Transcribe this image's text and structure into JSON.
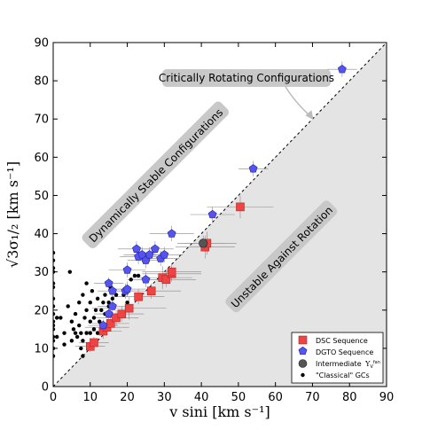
{
  "chart_data": {
    "type": "scatter",
    "xlabel": "v sini [km s⁻¹]",
    "ylabel": "√3σ₁/₂ [km s⁻¹]",
    "xlim": [
      0,
      90
    ],
    "ylim": [
      0,
      90
    ],
    "x_ticks": [
      "0",
      "10",
      "20",
      "30",
      "40",
      "50",
      "60",
      "70",
      "80",
      "90"
    ],
    "y_ticks": [
      "0",
      "10",
      "20",
      "30",
      "40",
      "50",
      "60",
      "70",
      "80",
      "90"
    ],
    "annotations": [
      {
        "text": "Critically Rotating Configurations",
        "position": "upper-right",
        "arrow_to": [
          70,
          70
        ]
      },
      {
        "text": "Dynamically Stable Configurations",
        "position": "upper-left",
        "rotation": -45
      },
      {
        "text": "Unstable Against Rotation",
        "position": "lower-right",
        "rotation": -45
      }
    ],
    "reference_line": {
      "name": "critical rotation",
      "x": [
        0,
        90
      ],
      "y": [
        0,
        90
      ]
    },
    "legend_position": "bottom-right",
    "series": [
      {
        "name": "DSC Sequence",
        "marker": "square",
        "color": "#ee4444",
        "points": [
          {
            "x": 10,
            "y": 10.5,
            "xerr": 4,
            "yerr": 1.5
          },
          {
            "x": 11,
            "y": 11.5,
            "xerr": 4,
            "yerr": 1.5
          },
          {
            "x": 13.5,
            "y": 14.5,
            "xerr": 5,
            "yerr": 2
          },
          {
            "x": 14.5,
            "y": 15.5,
            "xerr": 6,
            "yerr": 2
          },
          {
            "x": 15.5,
            "y": 16.5,
            "xerr": 5,
            "yerr": 2
          },
          {
            "x": 17,
            "y": 18,
            "xerr": 6,
            "yerr": 2
          },
          {
            "x": 18.5,
            "y": 19,
            "xerr": 6,
            "yerr": 2
          },
          {
            "x": 20.5,
            "y": 20.5,
            "xerr": 10,
            "yerr": 3
          },
          {
            "x": 23,
            "y": 23.5,
            "xerr": 7,
            "yerr": 2
          },
          {
            "x": 26.5,
            "y": 25,
            "xerr": 8,
            "yerr": 2
          },
          {
            "x": 29.5,
            "y": 28.5,
            "xerr": 8,
            "yerr": 3
          },
          {
            "x": 30.5,
            "y": 28,
            "xerr": 8,
            "yerr": 2
          },
          {
            "x": 32,
            "y": 29.5,
            "xerr": 8,
            "yerr": 2
          },
          {
            "x": 32,
            "y": 30,
            "xerr": 8,
            "yerr": 2
          },
          {
            "x": 41,
            "y": 36.5,
            "xerr": 8,
            "yerr": 3
          },
          {
            "x": 41.5,
            "y": 37.5,
            "xerr": 8,
            "yerr": 3
          },
          {
            "x": 50.5,
            "y": 47,
            "xerr": 9,
            "yerr": 3
          }
        ]
      },
      {
        "name": "DGTO Sequence",
        "marker": "pentagon",
        "color": "#5555ee",
        "points": [
          {
            "x": 13.5,
            "y": 16,
            "xerr": 4,
            "yerr": 1.5
          },
          {
            "x": 15,
            "y": 19,
            "xerr": 4,
            "yerr": 1.5
          },
          {
            "x": 16,
            "y": 21,
            "xerr": 4,
            "yerr": 1.5
          },
          {
            "x": 16,
            "y": 25,
            "xerr": 4,
            "yerr": 1.5
          },
          {
            "x": 15,
            "y": 27,
            "xerr": 4,
            "yerr": 1.5
          },
          {
            "x": 19.5,
            "y": 25,
            "xerr": 5,
            "yerr": 2
          },
          {
            "x": 20,
            "y": 25.5,
            "xerr": 5,
            "yerr": 2
          },
          {
            "x": 20,
            "y": 30.5,
            "xerr": 5,
            "yerr": 2
          },
          {
            "x": 23,
            "y": 34,
            "xerr": 5,
            "yerr": 2
          },
          {
            "x": 24,
            "y": 34.5,
            "xerr": 5,
            "yerr": 2
          },
          {
            "x": 25,
            "y": 33,
            "xerr": 5,
            "yerr": 2
          },
          {
            "x": 26,
            "y": 34.5,
            "xerr": 5,
            "yerr": 2
          },
          {
            "x": 25,
            "y": 28,
            "xerr": 5,
            "yerr": 2
          },
          {
            "x": 22.5,
            "y": 36,
            "xerr": 5,
            "yerr": 2
          },
          {
            "x": 27.5,
            "y": 36,
            "xerr": 5,
            "yerr": 2
          },
          {
            "x": 29,
            "y": 33.5,
            "xerr": 5,
            "yerr": 2
          },
          {
            "x": 30,
            "y": 34.5,
            "xerr": 5,
            "yerr": 2
          },
          {
            "x": 32,
            "y": 40,
            "xerr": 6,
            "yerr": 2
          },
          {
            "x": 43,
            "y": 45,
            "xerr": 6,
            "yerr": 2
          },
          {
            "x": 54,
            "y": 57,
            "xerr": 4,
            "yerr": 2
          },
          {
            "x": 78,
            "y": 83,
            "xerr": 4,
            "yerr": 2
          }
        ]
      },
      {
        "name": "Intermediate",
        "marker": "circle",
        "color": "#555555",
        "points": [
          {
            "x": 40.5,
            "y": 37.5,
            "xerr": 6,
            "yerr": 2
          }
        ]
      },
      {
        "name": "\"Classical\" GCs",
        "marker": "dot",
        "color": "#000000",
        "points": [
          {
            "x": 0,
            "y": 8
          },
          {
            "x": 0,
            "y": 10
          },
          {
            "x": 0,
            "y": 12
          },
          {
            "x": 0,
            "y": 13
          },
          {
            "x": 0,
            "y": 15
          },
          {
            "x": 0,
            "y": 16
          },
          {
            "x": 0,
            "y": 17
          },
          {
            "x": 0,
            "y": 19
          },
          {
            "x": 0,
            "y": 21
          },
          {
            "x": 0,
            "y": 23
          },
          {
            "x": 0,
            "y": 26
          },
          {
            "x": 0,
            "y": 27
          },
          {
            "x": 0,
            "y": 30
          },
          {
            "x": 0,
            "y": 31
          },
          {
            "x": 0,
            "y": 33
          },
          {
            "x": 0,
            "y": 35
          },
          {
            "x": 1,
            "y": 18
          },
          {
            "x": 1,
            "y": 13
          },
          {
            "x": 2,
            "y": 18
          },
          {
            "x": 3,
            "y": 11
          },
          {
            "x": 3,
            "y": 14
          },
          {
            "x": 4,
            "y": 21
          },
          {
            "x": 4.5,
            "y": 30
          },
          {
            "x": 5,
            "y": 12
          },
          {
            "x": 5,
            "y": 17
          },
          {
            "x": 5.5,
            "y": 15
          },
          {
            "x": 6,
            "y": 14
          },
          {
            "x": 6,
            "y": 19
          },
          {
            "x": 6.5,
            "y": 13
          },
          {
            "x": 7,
            "y": 16
          },
          {
            "x": 7,
            "y": 22
          },
          {
            "x": 7.5,
            "y": 10
          },
          {
            "x": 7.5,
            "y": 14
          },
          {
            "x": 8,
            "y": 12
          },
          {
            "x": 8,
            "y": 24
          },
          {
            "x": 8,
            "y": 8
          },
          {
            "x": 8.5,
            "y": 18
          },
          {
            "x": 9,
            "y": 14
          },
          {
            "x": 9,
            "y": 20
          },
          {
            "x": 9,
            "y": 27
          },
          {
            "x": 9.5,
            "y": 11
          },
          {
            "x": 10,
            "y": 17
          },
          {
            "x": 10,
            "y": 14
          },
          {
            "x": 10,
            "y": 22
          },
          {
            "x": 10.5,
            "y": 25
          },
          {
            "x": 11,
            "y": 12
          },
          {
            "x": 11,
            "y": 15
          },
          {
            "x": 11,
            "y": 18
          },
          {
            "x": 11.5,
            "y": 20
          },
          {
            "x": 12,
            "y": 14
          },
          {
            "x": 12,
            "y": 23
          },
          {
            "x": 12.5,
            "y": 17
          },
          {
            "x": 13,
            "y": 20
          },
          {
            "x": 13.5,
            "y": 22
          },
          {
            "x": 14,
            "y": 19
          },
          {
            "x": 14,
            "y": 24
          },
          {
            "x": 15,
            "y": 21
          },
          {
            "x": 15,
            "y": 22
          },
          {
            "x": 15.5,
            "y": 26
          },
          {
            "x": 16,
            "y": 23
          },
          {
            "x": 17,
            "y": 24
          },
          {
            "x": 19,
            "y": 24
          },
          {
            "x": 20,
            "y": 22
          },
          {
            "x": 22,
            "y": 29
          },
          {
            "x": 23,
            "y": 29
          },
          {
            "x": 21,
            "y": 28
          }
        ]
      }
    ]
  },
  "legend": {
    "items": [
      {
        "label": "DSC Sequence",
        "marker": "square",
        "color": "#ee4444"
      },
      {
        "label": "DGTO Sequence",
        "marker": "pentagon",
        "color": "#5555ee"
      },
      {
        "label": "Intermediate",
        "sub": "fan",
        "sup": "V",
        "marker": "circle",
        "color": "#555555"
      },
      {
        "label": "\"Classical\" GCs",
        "marker": "dot",
        "color": "#000000"
      }
    ]
  },
  "colors": {
    "unstable_region": "#e4e4e4",
    "annotation_box": "#c8c8c8",
    "errorbar": "#888888"
  }
}
